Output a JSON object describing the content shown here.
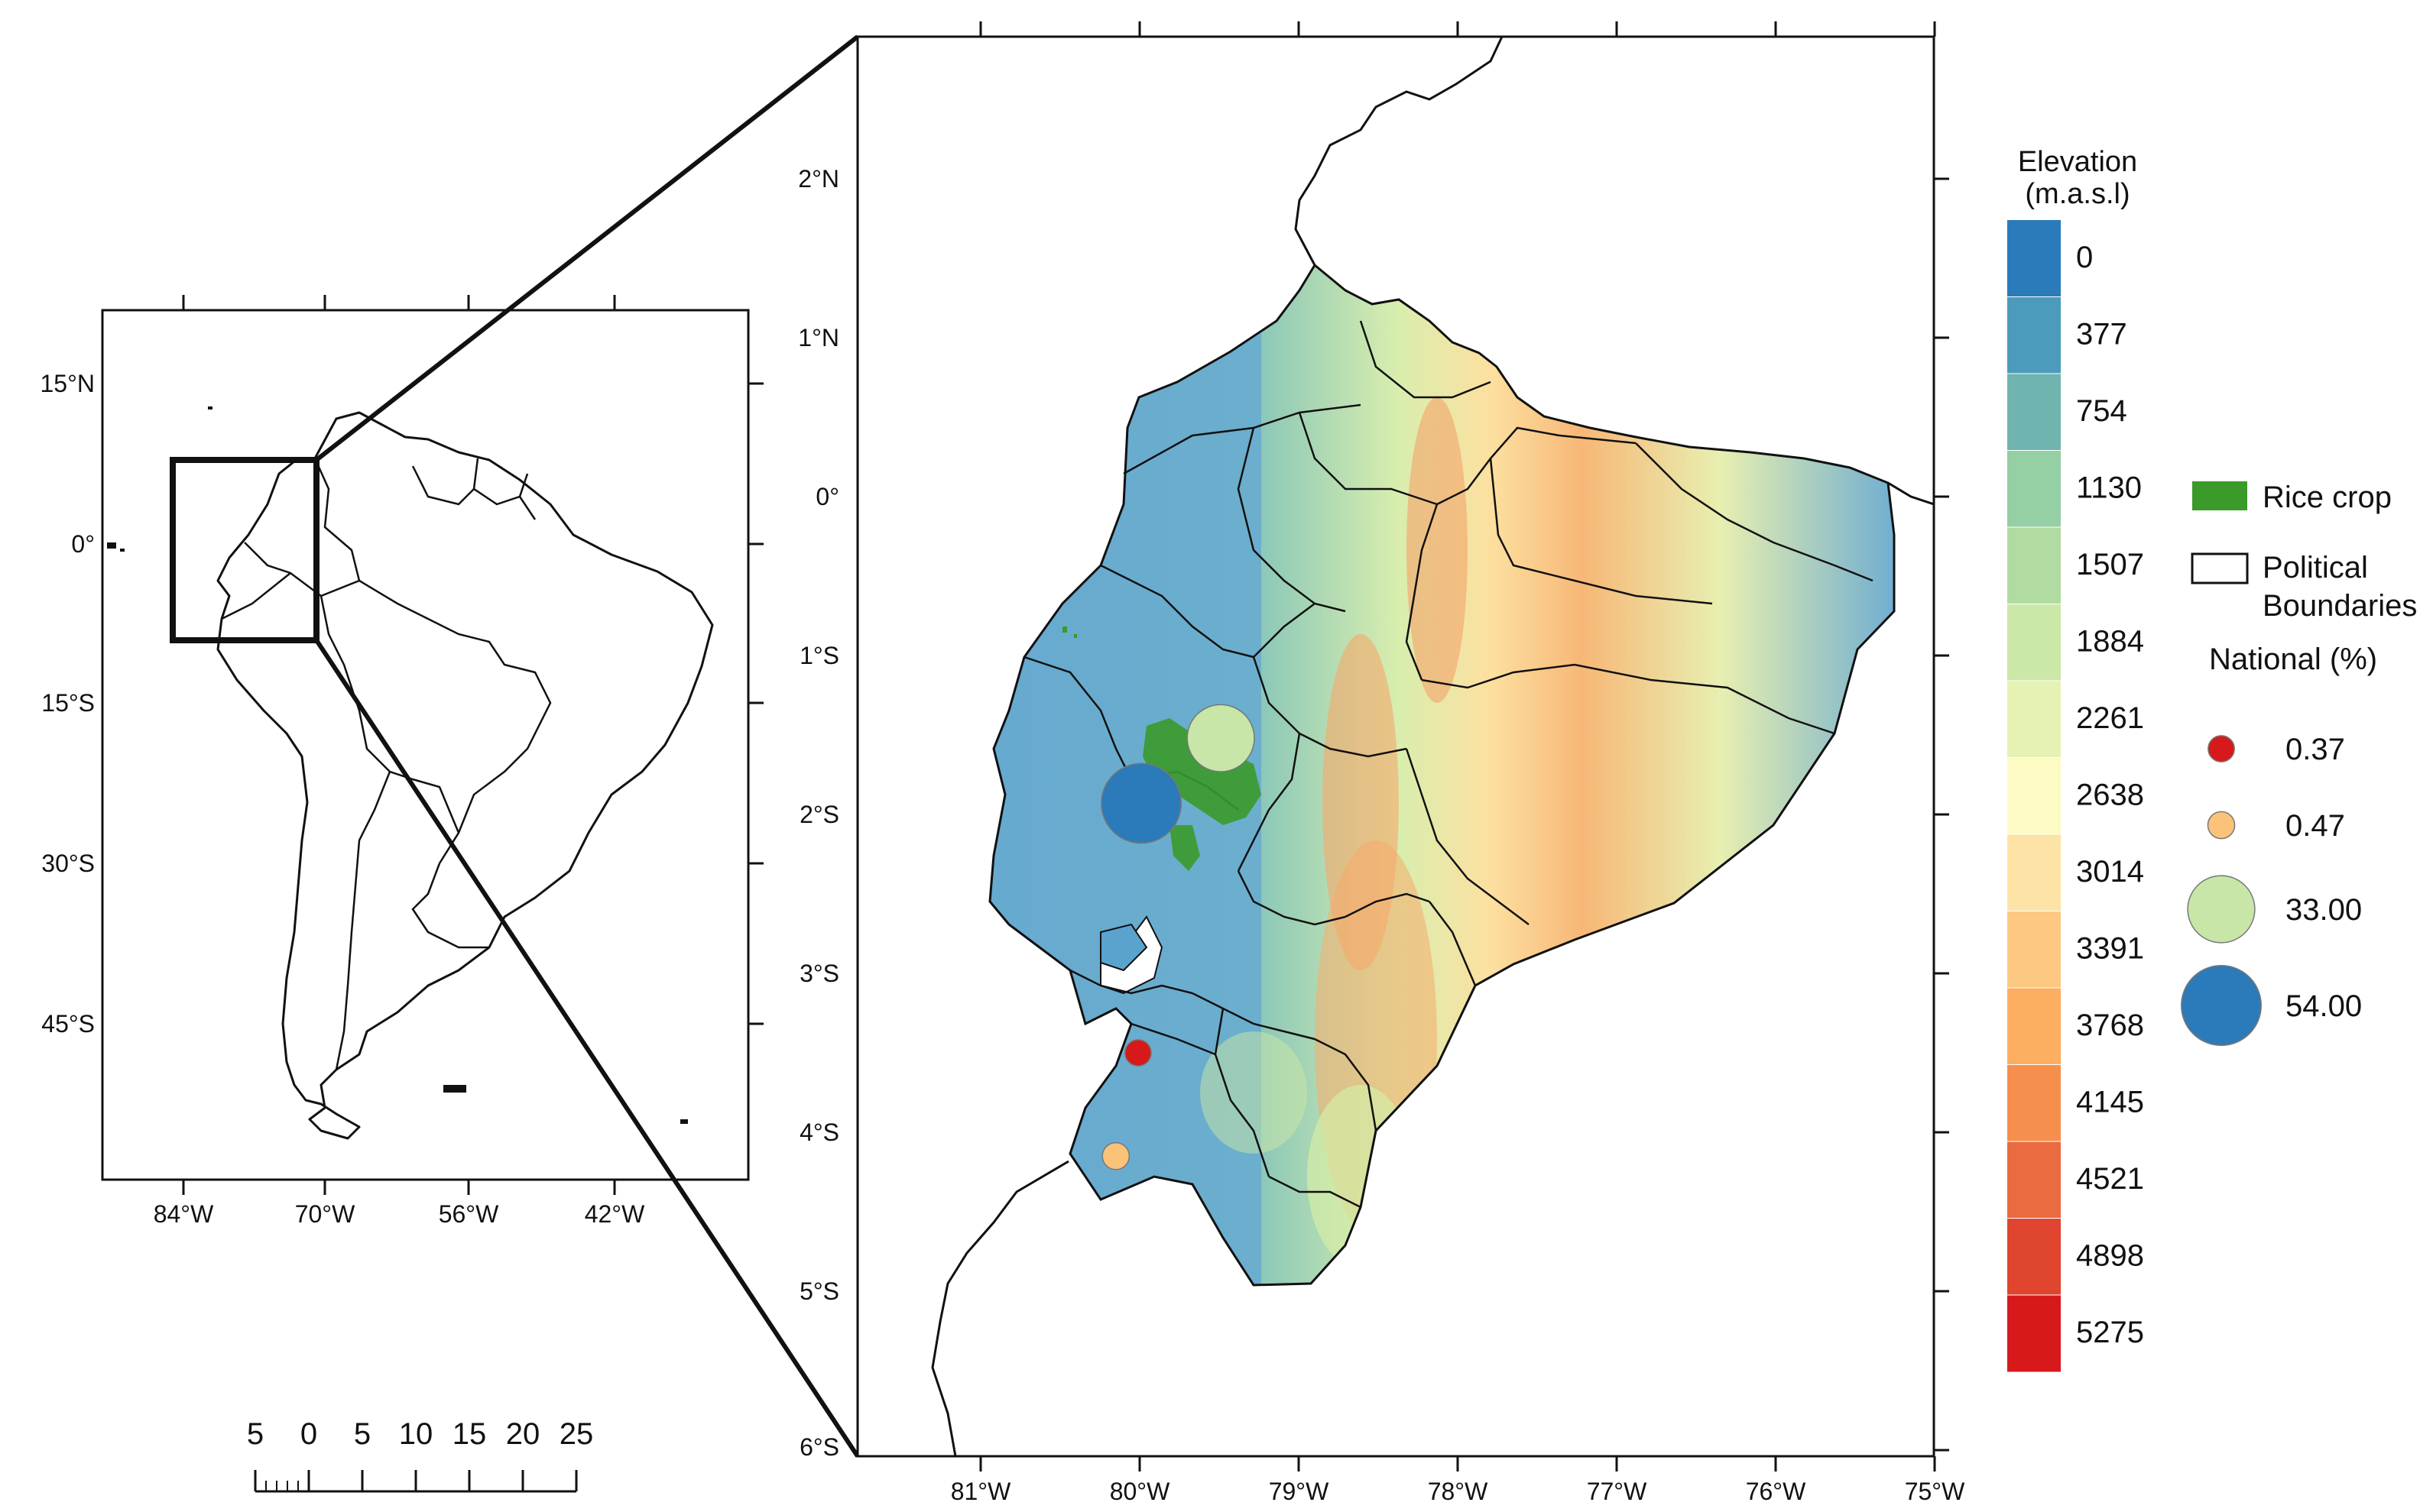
{
  "inset_map": {
    "lon_ticks": [
      "84°W",
      "70°W",
      "56°W",
      "42°W"
    ],
    "lat_ticks": [
      "15°N",
      "0°",
      "15°S",
      "30°S",
      "45°S"
    ]
  },
  "main_map": {
    "lon_ticks": [
      "81°W",
      "80°W",
      "79°W",
      "78°W",
      "77°W",
      "76°W",
      "75°W"
    ],
    "lat_ticks": [
      "2°N",
      "1°N",
      "0°",
      "1°S",
      "2°S",
      "3°S",
      "4°S",
      "5°S",
      "6°S"
    ],
    "rice_points": [
      {
        "lon": -79.99,
        "lat": -1.93,
        "value": 54.0,
        "color": "#2b7bba"
      },
      {
        "lon": -79.49,
        "lat": -1.52,
        "value": 33.0,
        "color": "#c7e6a8"
      },
      {
        "lon": -80.15,
        "lat": -4.15,
        "value": 0.47,
        "color": "#fbc27a"
      },
      {
        "lon": -80.01,
        "lat": -3.5,
        "value": 0.37,
        "color": "#d7191c"
      }
    ]
  },
  "elevation_legend": {
    "title_line1": "Elevation",
    "title_line2": "(m.a.s.l)",
    "labels": [
      "0",
      "377",
      "754",
      "1130",
      "1507",
      "1884",
      "2261",
      "2638",
      "3014",
      "3391",
      "3768",
      "4145",
      "4521",
      "4898",
      "5275"
    ],
    "colors": [
      "#2b7bba",
      "#4c9bbd",
      "#6fb4ae",
      "#95cfa4",
      "#b0dca2",
      "#cbe8a9",
      "#e5f2b3",
      "#fcfbc4",
      "#fde3a6",
      "#fdc882",
      "#fdae61",
      "#f68f4e",
      "#ea6b3f",
      "#e04530",
      "#d7191c"
    ]
  },
  "overlay_legend": {
    "rice_label": "Rice crop",
    "rice_color": "#3a9a2a",
    "boundary_line1": "Political",
    "boundary_line2": "Boundaries",
    "national_title": "National (%)",
    "items": [
      {
        "label": "0.37",
        "color": "#d7191c"
      },
      {
        "label": "0.47",
        "color": "#fbc27a"
      },
      {
        "label": "33.00",
        "color": "#c7e6a8"
      },
      {
        "label": "54.00",
        "color": "#2b7bba"
      }
    ]
  },
  "scale_bar": {
    "labels": [
      "5",
      "0",
      "5",
      "10",
      "15",
      "20",
      "25"
    ]
  }
}
